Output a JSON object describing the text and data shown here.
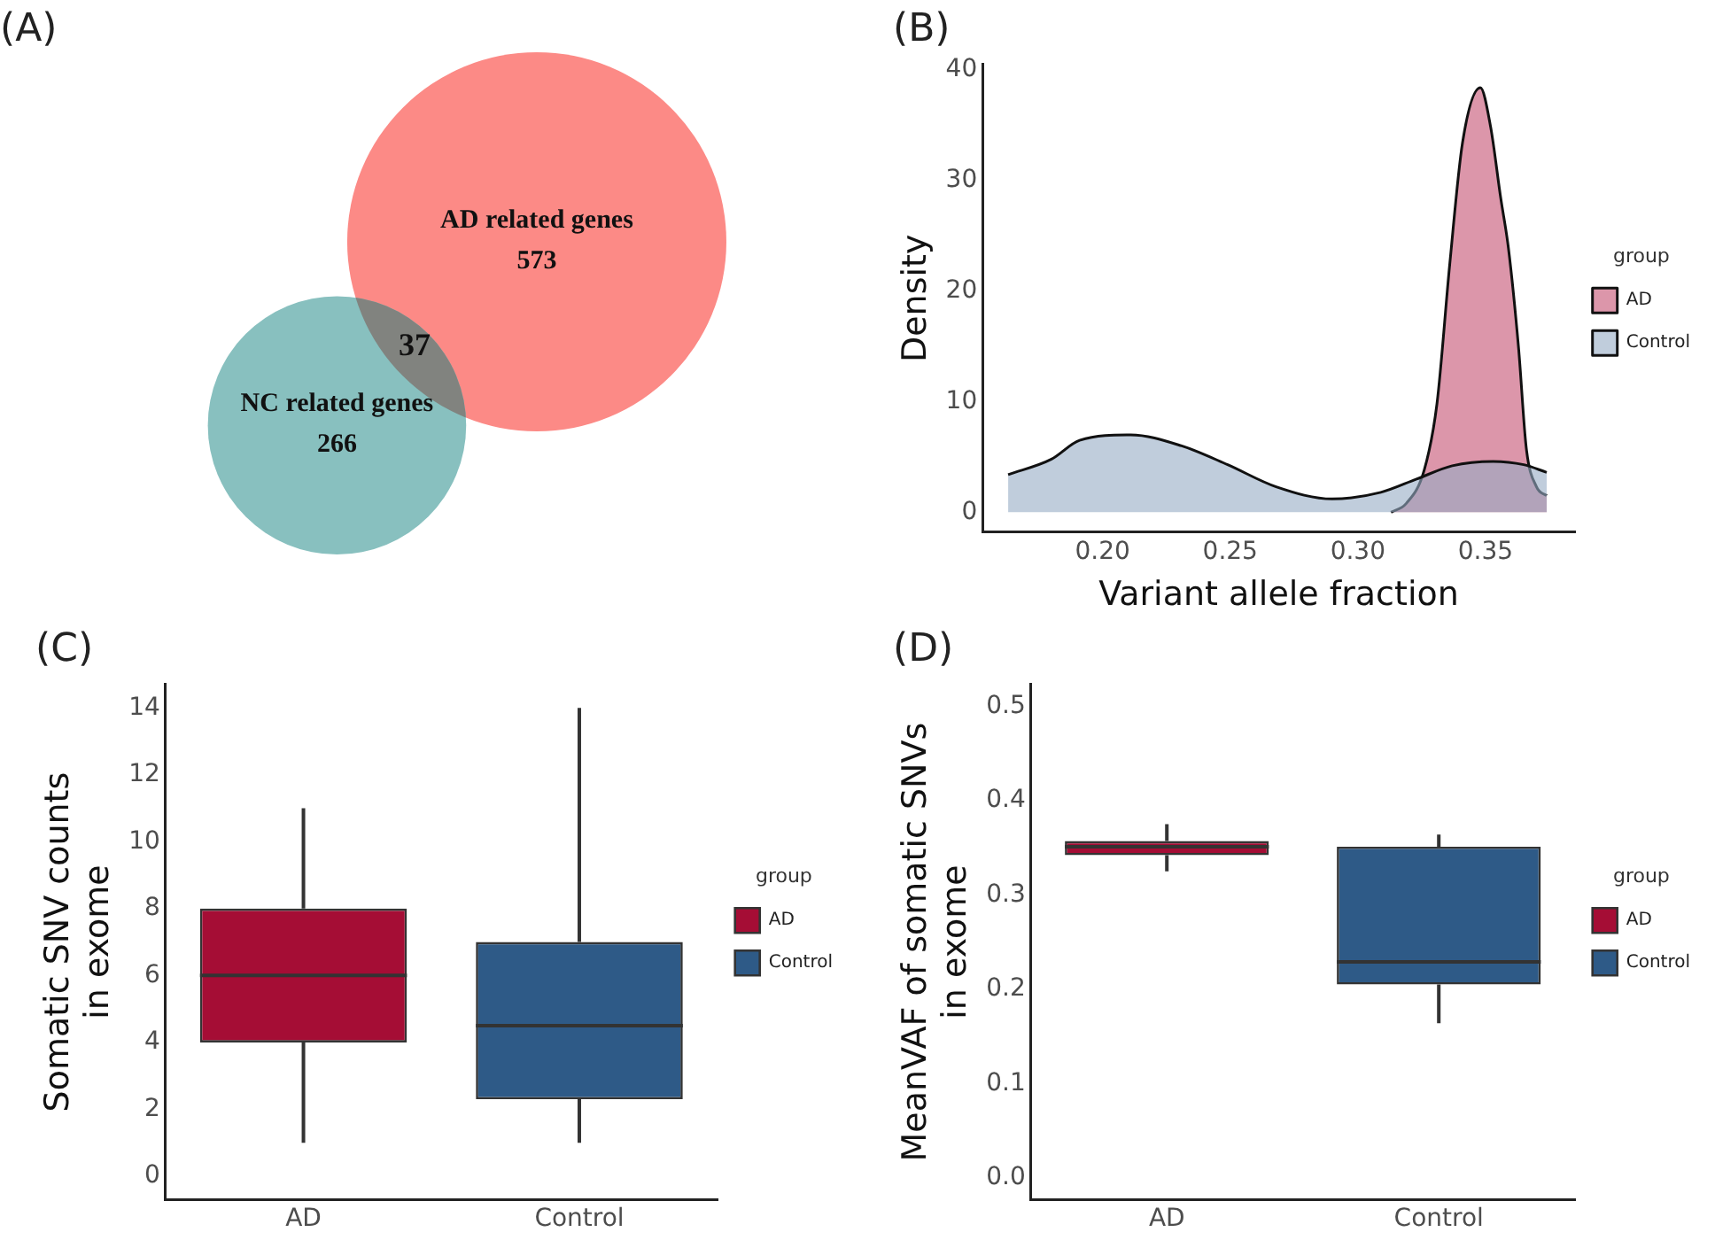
{
  "chart_data": [
    {
      "type": "other",
      "title": "(A)",
      "data_labels": true,
      "categories": [
        "AD related genes",
        "NC related genes"
      ],
      "values": [
        573,
        266
      ],
      "colors": [
        "#fc8a86",
        "#88c0bf"
      ],
      "annotations": [
        "37"
      ]
    },
    {
      "type": "area",
      "title": "(B)",
      "xlabel": "Variant allele fraction",
      "ylabel": "Density",
      "legend_title": "group",
      "legend": "right",
      "xlim": [
        0.153,
        0.385
      ],
      "ylim": [
        -1.8,
        40.5
      ],
      "xticks": [
        {
          "value": 0.2,
          "label": "0.20"
        },
        {
          "value": 0.25,
          "label": "0.25"
        },
        {
          "value": 0.3,
          "label": "0.30"
        },
        {
          "value": 0.35,
          "label": "0.35"
        }
      ],
      "yticks": [
        0,
        10,
        20,
        30,
        40
      ],
      "series": [
        {
          "name": "AD",
          "color": "#d6849b",
          "x": [
            0.313,
            0.319,
            0.326,
            0.331,
            0.336,
            0.341,
            0.348,
            0.352,
            0.356,
            0.359,
            0.363,
            0.366,
            0.37,
            0.374
          ],
          "values": [
            0,
            0.8,
            3.8,
            9.8,
            22.4,
            33.4,
            38.4,
            34.9,
            28.4,
            23.9,
            14.8,
            5.8,
            2.3,
            1.5
          ]
        },
        {
          "name": "Control",
          "color": "#96abc4",
          "x": [
            0.163,
            0.18,
            0.191,
            0.211,
            0.231,
            0.249,
            0.268,
            0.29,
            0.309,
            0.323,
            0.337,
            0.353,
            0.365,
            0.374
          ],
          "values": [
            3.4,
            4.8,
            6.5,
            7.0,
            6.0,
            4.3,
            2.3,
            1.2,
            1.8,
            3.0,
            4.2,
            4.6,
            4.3,
            3.6
          ]
        }
      ]
    },
    {
      "type": "box",
      "title": "(C)",
      "ylabel": "Somatic SNV counts\nin exome",
      "legend_title": "group",
      "legend": "right",
      "categories": [
        "AD",
        "Control"
      ],
      "ylim": [
        -0.7,
        14.7
      ],
      "yticks": [
        0,
        2,
        4,
        6,
        8,
        10,
        12,
        14
      ],
      "series": [
        {
          "name": "AD",
          "color": "#a50d35",
          "boxes": [
            {
              "low": 1,
              "q1": 4,
              "median": 6,
              "q3": 8,
              "high": 11
            },
            null
          ]
        },
        {
          "name": "Control",
          "color": "#2e5a87",
          "boxes": [
            null,
            {
              "low": 1,
              "q1": 2.3,
              "median": 4.5,
              "q3": 7,
              "high": 14
            }
          ]
        }
      ]
    },
    {
      "type": "box",
      "title": "(D)",
      "ylabel": "MeanVAF of somatic SNVs\nin exome",
      "legend_title": "group",
      "legend": "right",
      "categories": [
        "AD",
        "Control"
      ],
      "ylim": [
        -0.023,
        0.523
      ],
      "yticks": [
        {
          "value": 0,
          "label": "0.0"
        },
        0.1,
        0.2,
        0.3,
        0.4,
        0.5
      ],
      "series": [
        {
          "name": "AD",
          "color": "#a50d35",
          "boxes": [
            {
              "low": 0.325,
              "q1": 0.342,
              "median": 0.351,
              "q3": 0.357,
              "high": 0.375
            },
            null
          ]
        },
        {
          "name": "Control",
          "color": "#2e5a87",
          "boxes": [
            null,
            {
              "low": 0.164,
              "q1": 0.205,
              "median": 0.229,
              "q3": 0.351,
              "high": 0.364
            }
          ]
        }
      ]
    }
  ]
}
